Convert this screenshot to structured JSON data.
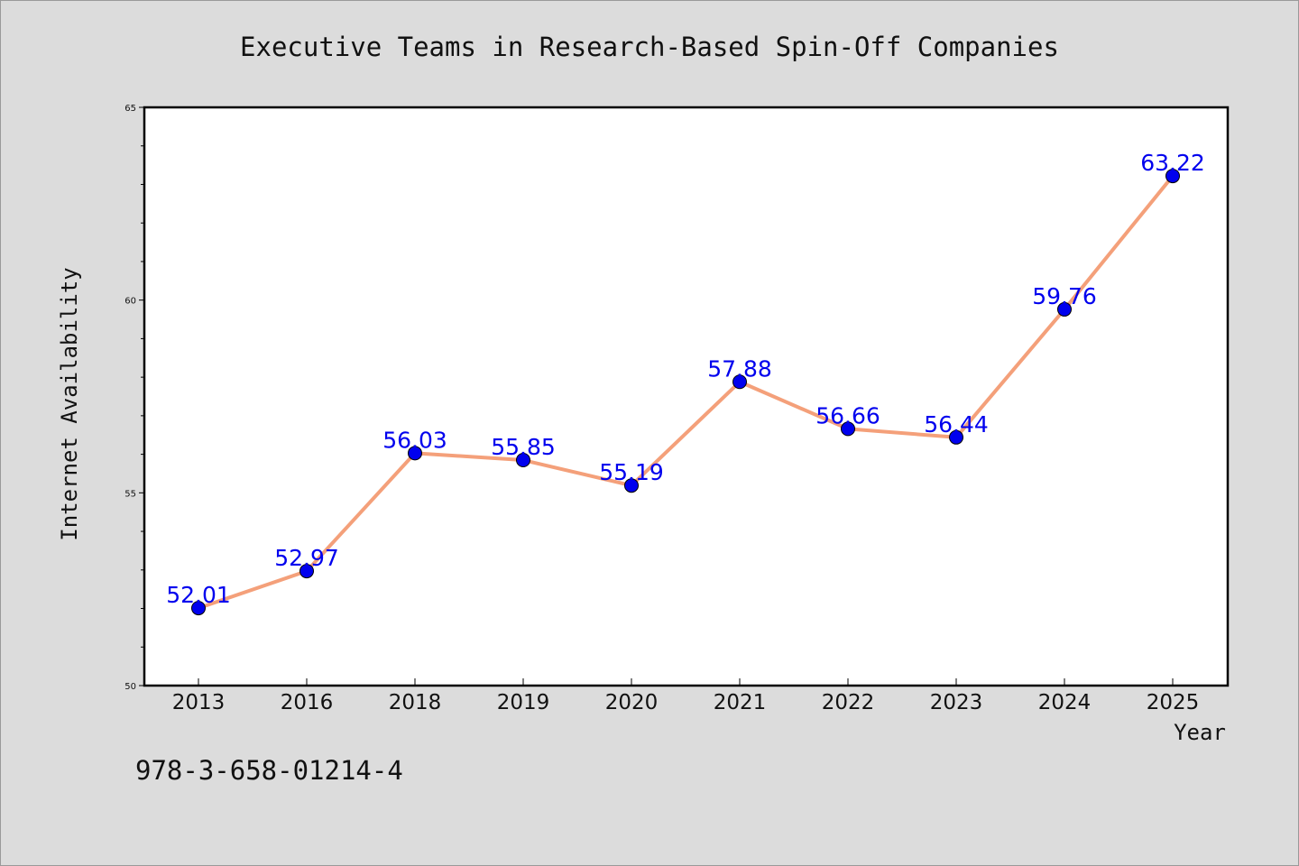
{
  "chart_data": {
    "type": "line",
    "title": "Executive Teams in Research-Based Spin-Off Companies",
    "xlabel": "Year",
    "ylabel": "Internet Availability",
    "categories": [
      "2013",
      "2016",
      "2018",
      "2019",
      "2020",
      "2021",
      "2022",
      "2023",
      "2024",
      "2025"
    ],
    "series": [
      {
        "values": [
          52.01,
          52.97,
          56.03,
          55.85,
          55.19,
          57.88,
          56.66,
          56.44,
          59.76,
          63.22
        ]
      }
    ],
    "data_labels": [
      "52.01",
      "52.97",
      "56.03",
      "55.85",
      "55.19",
      "57.88",
      "56.66",
      "56.44",
      "59.76",
      "63.22"
    ],
    "ylim": [
      50,
      65
    ],
    "yticks": [
      "50",
      "55",
      "60",
      "65"
    ],
    "grid": false,
    "legend": "none",
    "colors": {
      "line": "#f4a07a",
      "marker": "#0000ee",
      "label": "#0000ee",
      "background": "#dcdcdc",
      "plot": "#ffffff"
    }
  },
  "footer": {
    "isbn": "978-3-658-01214-4"
  }
}
